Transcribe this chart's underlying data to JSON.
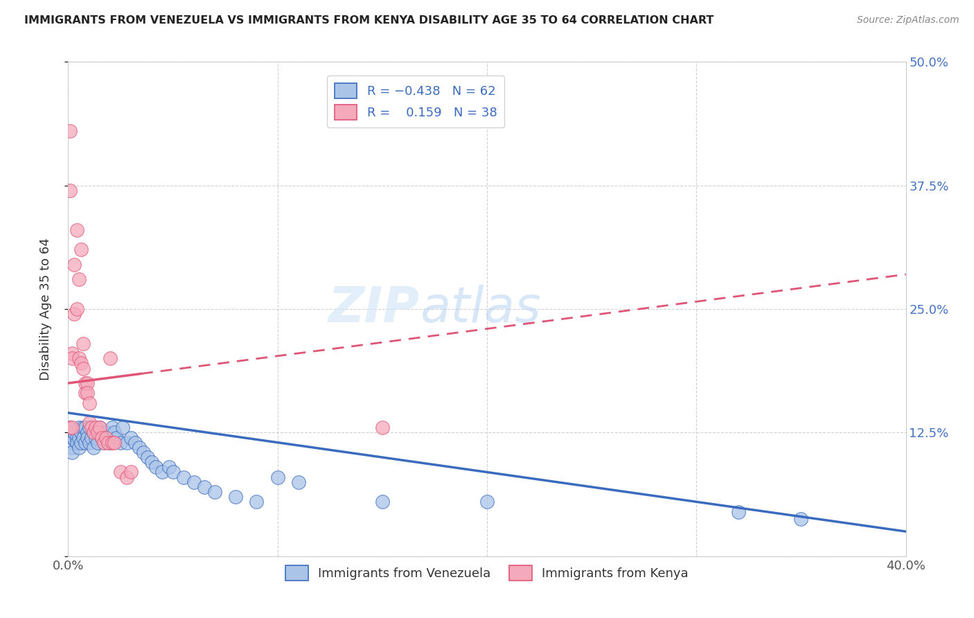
{
  "title": "IMMIGRANTS FROM VENEZUELA VS IMMIGRANTS FROM KENYA DISABILITY AGE 35 TO 64 CORRELATION CHART",
  "source": "Source: ZipAtlas.com",
  "ylabel": "Disability Age 35 to 64",
  "legend_label1": "Immigrants from Venezuela",
  "legend_label2": "Immigrants from Kenya",
  "color_venezuela": "#aac4e8",
  "color_kenya": "#f5aabb",
  "color_venezuela_line": "#3b6bbf",
  "color_kenya_line": "#e05575",
  "venezuela_x": [
    0.001,
    0.001,
    0.001,
    0.002,
    0.002,
    0.002,
    0.003,
    0.003,
    0.004,
    0.004,
    0.005,
    0.005,
    0.005,
    0.006,
    0.006,
    0.007,
    0.007,
    0.008,
    0.008,
    0.009,
    0.009,
    0.01,
    0.01,
    0.011,
    0.012,
    0.012,
    0.013,
    0.014,
    0.015,
    0.016,
    0.017,
    0.018,
    0.019,
    0.02,
    0.021,
    0.022,
    0.023,
    0.025,
    0.026,
    0.028,
    0.03,
    0.032,
    0.034,
    0.036,
    0.038,
    0.04,
    0.042,
    0.045,
    0.048,
    0.05,
    0.055,
    0.06,
    0.065,
    0.07,
    0.08,
    0.09,
    0.1,
    0.11,
    0.15,
    0.2,
    0.32,
    0.35
  ],
  "venezuela_y": [
    0.13,
    0.125,
    0.115,
    0.12,
    0.11,
    0.105,
    0.118,
    0.125,
    0.12,
    0.115,
    0.13,
    0.12,
    0.11,
    0.125,
    0.115,
    0.13,
    0.12,
    0.115,
    0.13,
    0.125,
    0.12,
    0.13,
    0.115,
    0.12,
    0.125,
    0.11,
    0.12,
    0.115,
    0.13,
    0.12,
    0.115,
    0.125,
    0.12,
    0.115,
    0.13,
    0.125,
    0.12,
    0.115,
    0.13,
    0.115,
    0.12,
    0.115,
    0.11,
    0.105,
    0.1,
    0.095,
    0.09,
    0.085,
    0.09,
    0.085,
    0.08,
    0.075,
    0.07,
    0.065,
    0.06,
    0.055,
    0.08,
    0.075,
    0.055,
    0.055,
    0.045,
    0.038
  ],
  "kenya_x": [
    0.001,
    0.001,
    0.001,
    0.002,
    0.002,
    0.002,
    0.003,
    0.003,
    0.004,
    0.004,
    0.005,
    0.005,
    0.006,
    0.006,
    0.007,
    0.007,
    0.008,
    0.008,
    0.009,
    0.009,
    0.01,
    0.01,
    0.011,
    0.012,
    0.013,
    0.014,
    0.015,
    0.016,
    0.017,
    0.018,
    0.019,
    0.02,
    0.021,
    0.022,
    0.025,
    0.028,
    0.03,
    0.15
  ],
  "kenya_y": [
    0.43,
    0.37,
    0.13,
    0.205,
    0.2,
    0.13,
    0.295,
    0.245,
    0.33,
    0.25,
    0.28,
    0.2,
    0.31,
    0.195,
    0.215,
    0.19,
    0.175,
    0.165,
    0.175,
    0.165,
    0.155,
    0.135,
    0.13,
    0.125,
    0.13,
    0.125,
    0.13,
    0.12,
    0.115,
    0.12,
    0.115,
    0.2,
    0.115,
    0.115,
    0.085,
    0.08,
    0.085,
    0.13
  ],
  "ven_line_x0": 0.0,
  "ven_line_x1": 0.4,
  "ven_line_y0": 0.145,
  "ven_line_y1": 0.025,
  "ken_line_x0": 0.0,
  "ken_line_x1": 0.4,
  "ken_line_y0": 0.175,
  "ken_line_y1": 0.285,
  "xlim": [
    0.0,
    0.4
  ],
  "ylim": [
    0.0,
    0.5
  ],
  "xticks": [
    0.0,
    0.1,
    0.2,
    0.3,
    0.4
  ],
  "xticklabels": [
    "0.0%",
    "",
    "",
    "",
    "40.0%"
  ],
  "yticks": [
    0.0,
    0.125,
    0.25,
    0.375,
    0.5
  ],
  "yticklabels_right": [
    "",
    "12.5%",
    "25.0%",
    "37.5%",
    "50.0%"
  ]
}
